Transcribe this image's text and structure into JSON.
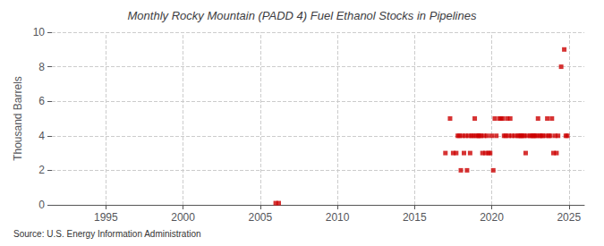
{
  "chart_data": {
    "type": "scatter",
    "title": "Monthly Rocky Mountain (PADD 4) Fuel Ethanol Stocks in Pipelines",
    "ylabel": "Thousand Barrels",
    "annotations": [
      "Source: U.S. Energy Information Administration"
    ],
    "color": "#cc0000",
    "marker": "square",
    "grid": true,
    "xlim": [
      1991.5,
      2026
    ],
    "ylim": [
      0,
      10
    ],
    "xticks": [
      1995,
      2000,
      2005,
      2010,
      2015,
      2020,
      2025
    ],
    "yticks": [
      0,
      2,
      4,
      6,
      8,
      10
    ],
    "x": [
      2006.0,
      2006.2,
      2017.0,
      2017.3,
      2017.5,
      2017.7,
      2017.8,
      2017.9,
      2018.0,
      2018.1,
      2018.2,
      2018.3,
      2018.4,
      2018.5,
      2018.6,
      2018.7,
      2018.8,
      2018.9,
      2019.0,
      2019.1,
      2019.2,
      2019.3,
      2019.4,
      2019.5,
      2019.6,
      2019.7,
      2019.8,
      2019.9,
      2020.0,
      2020.1,
      2020.2,
      2020.3,
      2020.5,
      2020.6,
      2020.7,
      2020.8,
      2020.9,
      2021.0,
      2021.1,
      2021.2,
      2021.3,
      2021.5,
      2021.7,
      2021.8,
      2021.9,
      2022.0,
      2022.1,
      2022.2,
      2022.3,
      2022.5,
      2022.6,
      2022.7,
      2022.8,
      2022.9,
      2023.0,
      2023.1,
      2023.2,
      2023.3,
      2023.5,
      2023.6,
      2023.7,
      2023.8,
      2023.9,
      2024.0,
      2024.1,
      2024.2,
      2024.3,
      2024.5,
      2024.7,
      2024.8,
      2024.9
    ],
    "values": [
      0.1,
      0.1,
      3.0,
      5.0,
      3.0,
      3.0,
      4.0,
      4.0,
      2.0,
      4.0,
      3.0,
      4.0,
      2.0,
      4.0,
      3.0,
      4.0,
      4.0,
      5.0,
      4.0,
      4.0,
      4.0,
      4.0,
      3.0,
      4.0,
      3.0,
      4.0,
      3.0,
      3.0,
      4.0,
      2.0,
      5.0,
      4.0,
      5.0,
      5.0,
      5.0,
      4.0,
      4.0,
      5.0,
      4.0,
      5.0,
      4.0,
      4.0,
      4.0,
      4.0,
      4.0,
      4.0,
      4.0,
      3.0,
      4.0,
      4.0,
      4.0,
      4.0,
      4.0,
      4.0,
      5.0,
      4.0,
      4.0,
      4.0,
      4.0,
      5.0,
      4.0,
      4.0,
      5.0,
      3.0,
      4.0,
      3.0,
      4.0,
      8.0,
      9.0,
      4.0,
      4.0
    ]
  }
}
